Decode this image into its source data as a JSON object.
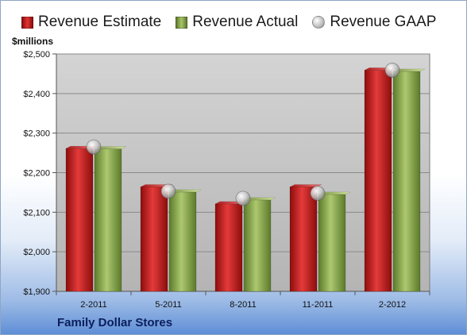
{
  "colors": {
    "estimate": "#c41e1e",
    "actual": "#8fac55",
    "gaap": "#c8c8c8",
    "plot_bg": "#c8c8c8",
    "grid": "#8a8a8a"
  },
  "legend": {
    "estimate_label": "Revenue Estimate",
    "actual_label": "Revenue Actual",
    "gaap_label": "Revenue GAAP"
  },
  "unit_label": "$millions",
  "company_label": "Family Dollar Stores",
  "chart_data": {
    "type": "bar",
    "categories": [
      "2-2011",
      "5-2011",
      "8-2011",
      "11-2011",
      "2-2012"
    ],
    "series": [
      {
        "name": "Revenue Estimate",
        "type": "bar",
        "values": [
          2261,
          2164,
          2121,
          2164,
          2459
        ]
      },
      {
        "name": "Revenue Actual",
        "type": "bar",
        "values": [
          2260,
          2151,
          2131,
          2145,
          2456
        ]
      },
      {
        "name": "Revenue GAAP",
        "type": "scatter",
        "values": [
          2265,
          2153,
          2135,
          2148,
          2459
        ]
      }
    ],
    "ylabel": "$millions",
    "ylim": [
      1900,
      2500
    ],
    "yticks": [
      1900,
      2000,
      2100,
      2200,
      2300,
      2400,
      2500
    ],
    "ytick_labels": [
      "$1,900",
      "$2,000",
      "$2,100",
      "$2,200",
      "$2,300",
      "$2,400",
      "$2,500"
    ],
    "grid": true,
    "legend_position": "top"
  }
}
